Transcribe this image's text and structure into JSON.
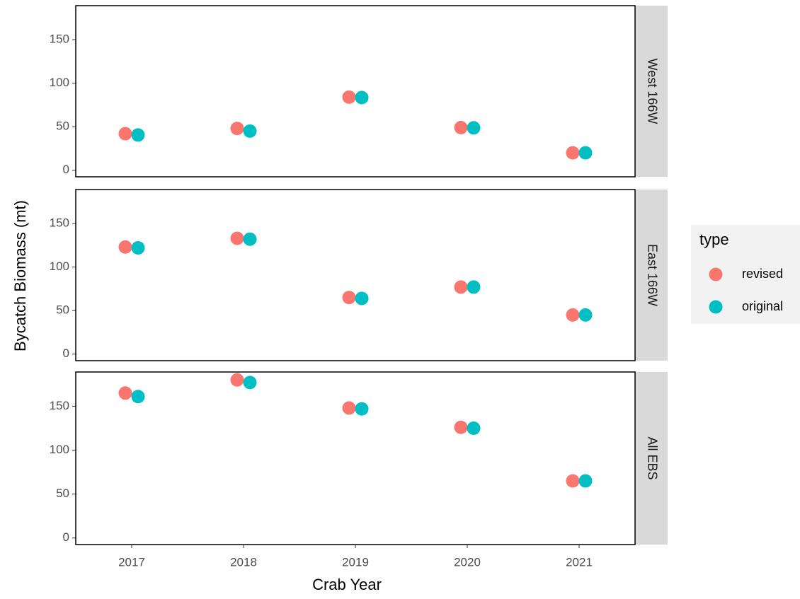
{
  "chart_data": {
    "type": "dot",
    "xlabel": "Crab Year",
    "ylabel": "Bycatch Biomass (mt)",
    "legend_title": "type",
    "categories": [
      "2017",
      "2018",
      "2019",
      "2020",
      "2021"
    ],
    "ylim": [
      -7.5,
      189
    ],
    "yticks": [
      0,
      50,
      100,
      150
    ],
    "panels": [
      "West 166W",
      "East 166W",
      "All EBS"
    ],
    "series": [
      {
        "name": "revised",
        "color": "#F8766D",
        "values": [
          [
            42,
            48,
            84,
            49,
            20
          ],
          [
            123,
            133,
            65,
            77,
            45
          ],
          [
            165,
            180,
            148,
            126,
            65
          ]
        ]
      },
      {
        "name": "original",
        "color": "#00BFC4",
        "values": [
          [
            40.5,
            45,
            83.5,
            48.7,
            20
          ],
          [
            122,
            132,
            64,
            77,
            45
          ],
          [
            161,
            177,
            147,
            125,
            65
          ]
        ]
      }
    ]
  }
}
